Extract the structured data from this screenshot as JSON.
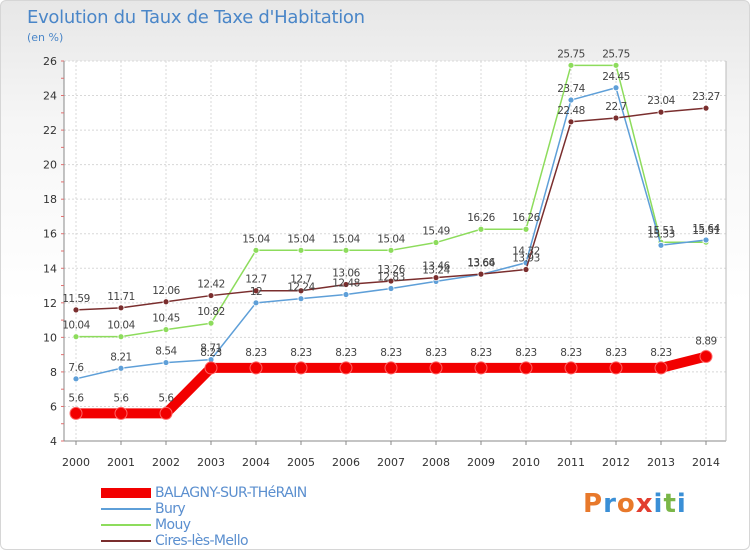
{
  "title": "Evolution du Taux de Taxe d'Habitation",
  "unit_label": "(en %)",
  "logo": {
    "letters": [
      "P",
      "r",
      "o",
      "x",
      "i",
      "t",
      "i"
    ],
    "colors": [
      "#e8792b",
      "#3a8fd6",
      "#e8792b",
      "#e23d2f",
      "#3a8fd6",
      "#7ab648",
      "#3a8fd6"
    ]
  },
  "chart_data": {
    "type": "line",
    "title": "Evolution du Taux de Taxe d'Habitation",
    "ylabel": "(en %)",
    "xlabel": "",
    "x": [
      "2000",
      "2001",
      "2002",
      "2003",
      "2004",
      "2005",
      "2006",
      "2007",
      "2008",
      "2009",
      "2010",
      "2011",
      "2012",
      "2013",
      "2014"
    ],
    "ylim": [
      4,
      26
    ],
    "yticks": [
      "4",
      "6",
      "8",
      "10",
      "12",
      "14",
      "16",
      "18",
      "20",
      "22",
      "24",
      "26"
    ],
    "grid": true,
    "legend_position": "bottom-left",
    "series": [
      {
        "name": "BALAGNY-SUR-THéRAIN",
        "color": "#f20000",
        "width": 10,
        "point_labels": true,
        "values": [
          5.6,
          5.6,
          5.6,
          8.23,
          8.23,
          8.23,
          8.23,
          8.23,
          8.23,
          8.23,
          8.23,
          8.23,
          8.23,
          8.23,
          8.89
        ],
        "labels": [
          "5.6",
          "5.6",
          "5.6",
          "8.23",
          "8.23",
          "8.23",
          "8.23",
          "8.23",
          "8.23",
          "8.23",
          "8.23",
          "8.23",
          "8.23",
          "8.23",
          "8.89"
        ]
      },
      {
        "name": "Bury",
        "color": "#5e9fd8",
        "width": 1.5,
        "point_labels": true,
        "values": [
          7.6,
          8.21,
          8.54,
          8.71,
          12.0,
          12.24,
          12.48,
          12.83,
          13.24,
          13.64,
          14.32,
          23.74,
          24.45,
          15.33,
          15.64
        ],
        "labels": [
          "7.6",
          "8.21",
          "8.54",
          "8.71",
          "12",
          "12.24",
          "12.48",
          "12.83",
          "13.24",
          "13.64",
          "14.32",
          "23.74",
          "24.45",
          "15.33",
          "15.64"
        ]
      },
      {
        "name": "Mouy",
        "color": "#8ddc5c",
        "width": 1.5,
        "point_labels": true,
        "values": [
          10.04,
          10.04,
          10.45,
          10.82,
          15.04,
          15.04,
          15.04,
          15.04,
          15.49,
          16.26,
          16.26,
          25.75,
          25.75,
          15.51,
          15.51
        ],
        "labels": [
          "10.04",
          "10.04",
          "10.45",
          "10.82",
          "15.04",
          "15.04",
          "15.04",
          "15.04",
          "15.49",
          "16.26",
          "16.26",
          "25.75",
          "25.75",
          "15.51",
          "15.51"
        ]
      },
      {
        "name": "Cires-lès-Mello",
        "color": "#7a2e2e",
        "width": 1.5,
        "point_labels": true,
        "values": [
          11.59,
          11.71,
          12.06,
          12.42,
          12.7,
          12.7,
          13.06,
          13.26,
          13.46,
          13.66,
          13.93,
          22.48,
          22.7,
          23.04,
          23.27
        ],
        "labels": [
          "11.59",
          "11.71",
          "12.06",
          "12.42",
          "12.7",
          "12.7",
          "13.06",
          "13.26",
          "13.46",
          "13.66",
          "13.93",
          "22.48",
          "22.7",
          "23.04",
          "23.27"
        ]
      }
    ]
  }
}
